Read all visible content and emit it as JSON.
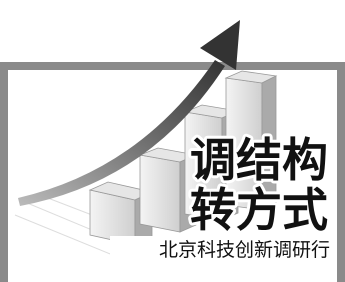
{
  "graphic": {
    "headline": [
      "调结构",
      "转方式"
    ],
    "caption": "北京科技创新调研行"
  }
}
